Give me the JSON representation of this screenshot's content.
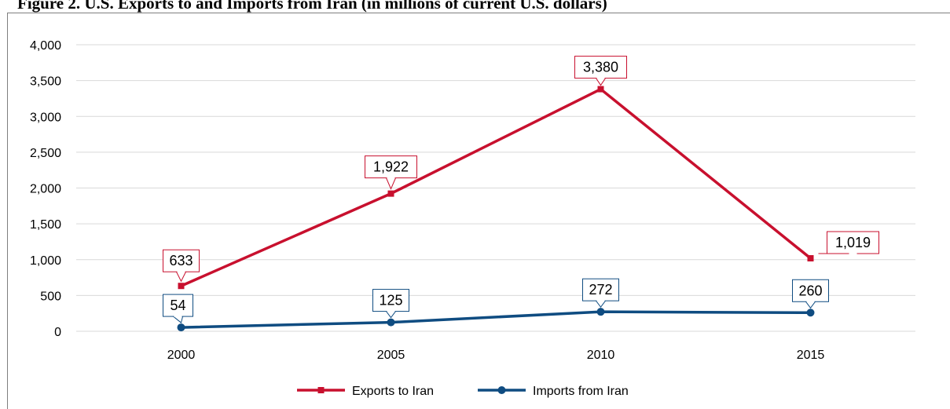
{
  "title": "Figure 2. U.S. Exports to and Imports from Iran (in millions of current U.S. dollars)",
  "colors": {
    "exports": "#c8102e",
    "imports": "#0f4c81",
    "grid": "#d9d9d9"
  },
  "chart_data": {
    "type": "line",
    "x": [
      "2000",
      "2005",
      "2010",
      "2015"
    ],
    "ylim": [
      0,
      4000
    ],
    "yticks": [
      0,
      500,
      1000,
      1500,
      2000,
      2500,
      3000,
      3500,
      4000
    ],
    "ytick_labels": [
      "0",
      "500",
      "1,000",
      "1,500",
      "2,000",
      "2,500",
      "3,000",
      "3,500",
      "4,000"
    ],
    "grid": true,
    "legend": "bottom",
    "series": [
      {
        "name": "Exports to Iran",
        "values": [
          633,
          1922,
          3380,
          1019
        ],
        "labels": [
          "633",
          "1,922",
          "3,380",
          "1,019"
        ],
        "marker": "square"
      },
      {
        "name": "Imports from Iran",
        "values": [
          54,
          125,
          272,
          260
        ],
        "labels": [
          "54",
          "125",
          "272",
          "260"
        ],
        "marker": "circle"
      }
    ]
  }
}
